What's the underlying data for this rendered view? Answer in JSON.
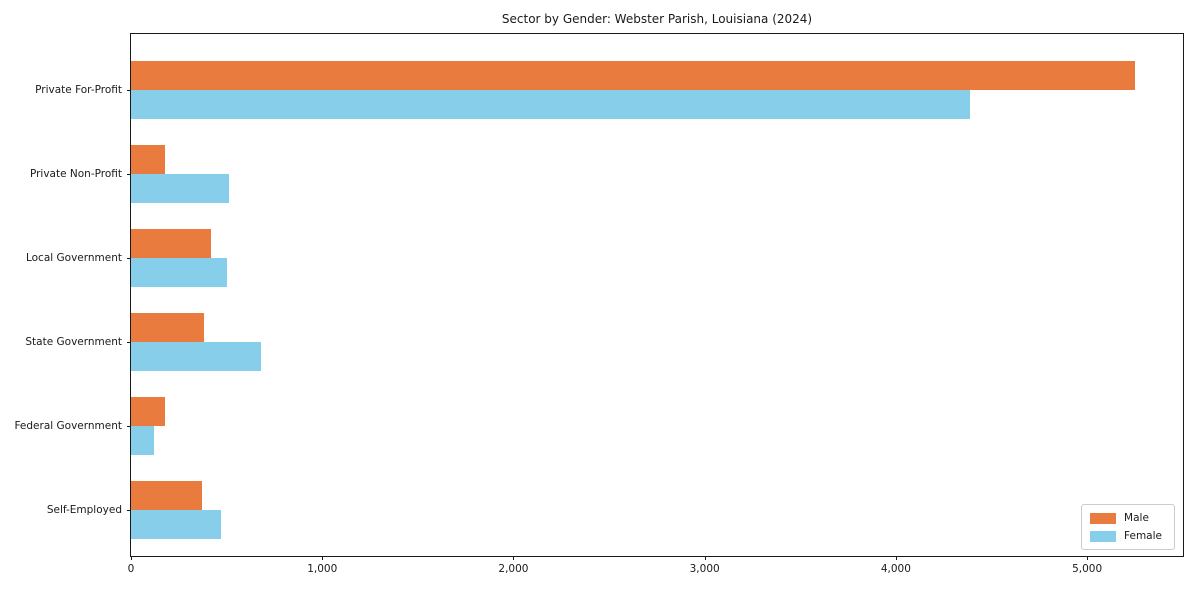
{
  "title": "Sector by Gender: Webster Parish, Louisiana (2024)",
  "chart_data": {
    "type": "bar",
    "orientation": "horizontal",
    "title": "Sector by Gender: Webster Parish, Louisiana (2024)",
    "categories": [
      "Private For-Profit",
      "Private Non-Profit",
      "Local Government",
      "State Government",
      "Federal Government",
      "Self-Employed"
    ],
    "series": [
      {
        "name": "Male",
        "color": "#e87b3d",
        "values": [
          5250,
          178,
          420,
          381,
          176,
          372
        ]
      },
      {
        "name": "Female",
        "color": "#87ceeb",
        "values": [
          4388,
          514,
          501,
          678,
          119,
          470
        ]
      }
    ],
    "xlabel": "",
    "ylabel": "",
    "xlim": [
      0,
      5512
    ],
    "x_ticks": [
      0,
      1000,
      2000,
      3000,
      4000,
      5000
    ],
    "x_tick_labels": [
      "0",
      "1,000",
      "2,000",
      "3,000",
      "4,000",
      "5,000"
    ],
    "grid": false,
    "legend_position": "lower right",
    "axis_color": "#1a1a1a",
    "background_color": "#ffffff"
  },
  "legend": {
    "items": [
      {
        "label": "Male",
        "color": "#e87b3d"
      },
      {
        "label": "Female",
        "color": "#87ceeb"
      }
    ]
  }
}
